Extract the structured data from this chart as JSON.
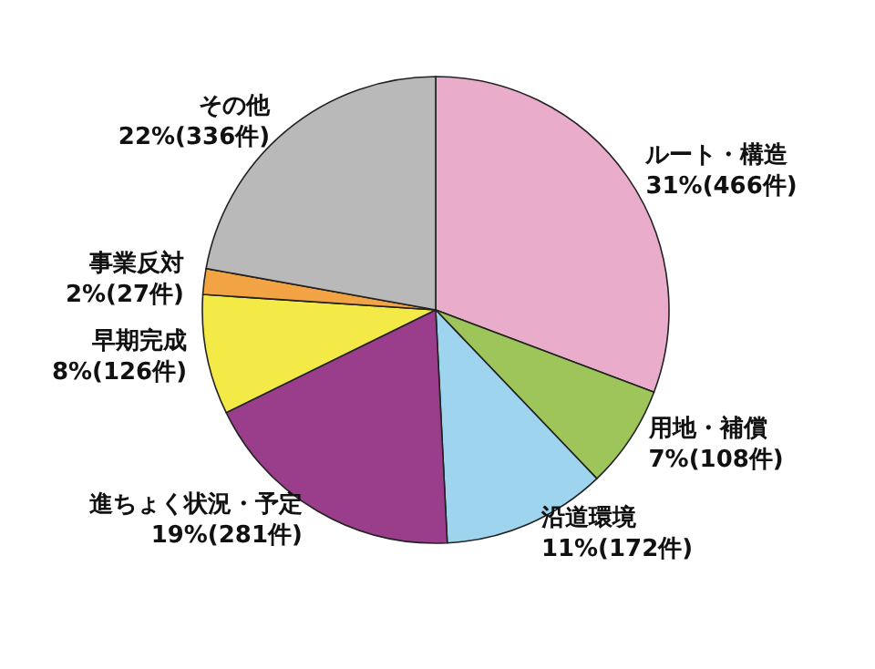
{
  "chart_data": {
    "type": "pie",
    "categories": [
      "ルート・構造",
      "用地・補償",
      "沿道環境",
      "進ちょく状況・予定",
      "早期完成",
      "事業反対",
      "その他"
    ],
    "values": [
      466,
      108,
      172,
      281,
      126,
      27,
      336
    ],
    "value_labels": [
      "31%(466件)",
      "7%(108件)",
      "11%(172件)",
      "19%(281件)",
      "8%(126件)",
      "2%(27件)",
      "22%(336件)"
    ],
    "colors": [
      "#e9adcb",
      "#9dc55a",
      "#9fd4ee",
      "#9a3e8b",
      "#f3ea48",
      "#f2a444",
      "#b9b9b9"
    ],
    "legend": false
  }
}
